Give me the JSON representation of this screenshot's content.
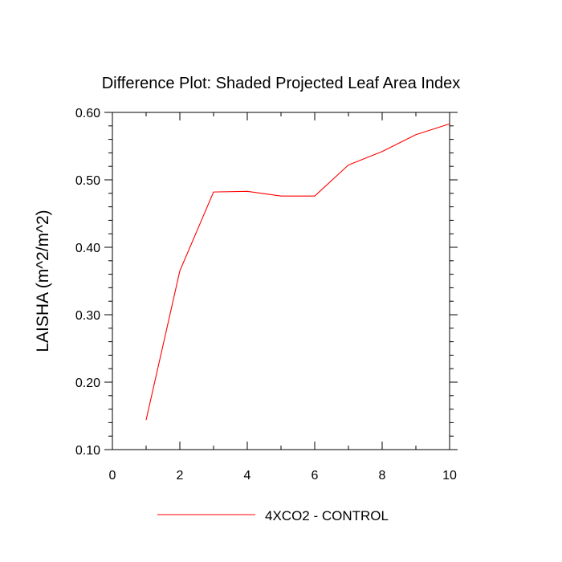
{
  "chart_data": {
    "type": "line",
    "title": "Difference Plot: Shaded Projected Leaf Area Index",
    "xlabel": "",
    "ylabel": "LAISHA  (m^2/m^2)",
    "xlim": [
      0,
      10
    ],
    "ylim": [
      0.1,
      0.6
    ],
    "x_ticks": [
      0,
      2,
      4,
      6,
      8,
      10
    ],
    "x_tick_labels": [
      "0",
      "2",
      "4",
      "6",
      "8",
      "10"
    ],
    "y_ticks": [
      0.1,
      0.2,
      0.3,
      0.4,
      0.5,
      0.6
    ],
    "y_tick_labels": [
      "0.10",
      "0.20",
      "0.30",
      "0.40",
      "0.50",
      "0.60"
    ],
    "grid": false,
    "legend_position": "bottom-center",
    "x": [
      1,
      2,
      3,
      4,
      5,
      6,
      7,
      8,
      9,
      10
    ],
    "series": [
      {
        "name": "4XCO2 - CONTROL",
        "color": "#ff0000",
        "values": [
          0.144,
          0.365,
          0.482,
          0.483,
          0.476,
          0.476,
          0.522,
          0.542,
          0.567,
          0.583
        ]
      }
    ]
  }
}
